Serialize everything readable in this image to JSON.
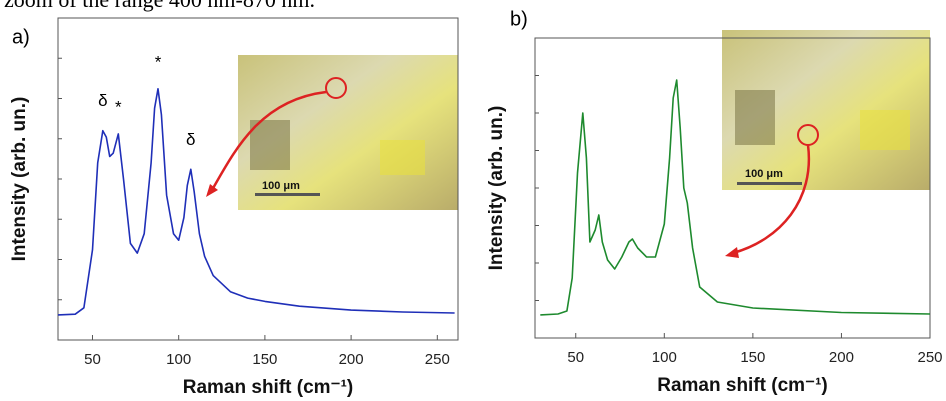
{
  "caption_fragment": "zoom of the range 400 nm-870 nm.",
  "chart_data": [
    {
      "type": "line",
      "panel_label": "a)",
      "x_label": "Raman shift (cm⁻¹)",
      "y_label": "Intensity (arb. un.)",
      "xlim": [
        30,
        262
      ],
      "xticks": [
        50,
        100,
        150,
        200,
        250
      ],
      "ylim": [
        0,
        1
      ],
      "annotations": [
        "δ",
        "*",
        "*",
        "δ"
      ],
      "inset_scale_label": "100 μm",
      "x": [
        30,
        40,
        45,
        50,
        53,
        56,
        58,
        60,
        62,
        65,
        68,
        72,
        76,
        80,
        84,
        86,
        88,
        90,
        93,
        97,
        100,
        103,
        105,
        107,
        109,
        112,
        115,
        120,
        130,
        140,
        150,
        170,
        200,
        230,
        260
      ],
      "series": [
        {
          "color": "#1f2fb8",
          "values": [
            0.078,
            0.08,
            0.1,
            0.28,
            0.55,
            0.65,
            0.63,
            0.57,
            0.58,
            0.64,
            0.5,
            0.3,
            0.27,
            0.33,
            0.55,
            0.72,
            0.78,
            0.7,
            0.45,
            0.33,
            0.31,
            0.38,
            0.48,
            0.53,
            0.46,
            0.33,
            0.26,
            0.2,
            0.15,
            0.13,
            0.12,
            0.105,
            0.093,
            0.087,
            0.084
          ]
        }
      ]
    },
    {
      "type": "line",
      "panel_label": "b)",
      "x_label": "Raman shift (cm⁻¹)",
      "y_label": "Intensity (arb. un.)",
      "xlim": [
        27,
        250
      ],
      "xticks": [
        50,
        100,
        150,
        200,
        250
      ],
      "ylim": [
        0,
        1
      ],
      "inset_scale_label": "100 μm",
      "x": [
        30,
        40,
        45,
        48,
        51,
        54,
        56,
        58,
        61,
        63,
        65,
        68,
        72,
        76,
        80,
        82,
        85,
        90,
        95,
        100,
        103,
        105,
        107,
        109,
        111,
        113,
        116,
        120,
        130,
        150,
        200,
        250
      ],
      "series": [
        {
          "color": "#1e8a2e",
          "values": [
            0.077,
            0.08,
            0.09,
            0.2,
            0.55,
            0.75,
            0.6,
            0.32,
            0.36,
            0.41,
            0.32,
            0.26,
            0.23,
            0.27,
            0.32,
            0.33,
            0.3,
            0.27,
            0.27,
            0.38,
            0.6,
            0.8,
            0.86,
            0.7,
            0.5,
            0.45,
            0.3,
            0.17,
            0.12,
            0.1,
            0.085,
            0.08
          ]
        }
      ]
    }
  ]
}
